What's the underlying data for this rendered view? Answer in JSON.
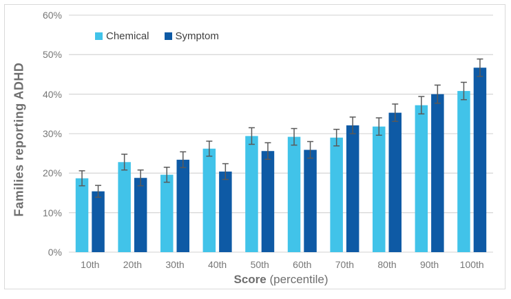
{
  "chart_data": {
    "type": "bar",
    "title": "",
    "ylabel": "Families reporting ADHD",
    "xlabel_bold": "Score",
    "xlabel_rest": " (percentile)",
    "categories": [
      "10th",
      "20th",
      "30th",
      "40th",
      "50th",
      "60th",
      "70th",
      "80th",
      "90th",
      "100th"
    ],
    "series": [
      {
        "name": "Chemical",
        "color": "#41c3e9",
        "values": [
          18.7,
          22.8,
          19.6,
          26.2,
          29.4,
          29.2,
          29.0,
          31.8,
          37.2,
          40.8
        ],
        "errors": [
          1.9,
          2.0,
          1.9,
          1.9,
          2.1,
          2.1,
          2.1,
          2.2,
          2.2,
          2.2
        ]
      },
      {
        "name": "Symptom",
        "color": "#0e5aa5",
        "values": [
          15.4,
          18.8,
          23.4,
          20.4,
          25.6,
          25.9,
          32.1,
          35.3,
          40.0,
          46.7
        ],
        "errors": [
          1.5,
          2.0,
          2.0,
          2.0,
          2.1,
          2.1,
          2.1,
          2.2,
          2.3,
          2.2
        ]
      }
    ],
    "ylim": [
      0,
      60
    ],
    "ytick_step": 10,
    "ytick_suffix": "%",
    "grid": true,
    "legend_position": "top-left-inside",
    "error_bars": true
  },
  "colors": {
    "background": "#ffffff",
    "frame_border": "#d9d9d9",
    "gridline": "#d9d9d9",
    "axis_line": "#d9d9d9",
    "tick_label": "#767676",
    "axis_title": "#6e6e6e",
    "legend_text": "#404040",
    "error_bar": "#595959"
  }
}
